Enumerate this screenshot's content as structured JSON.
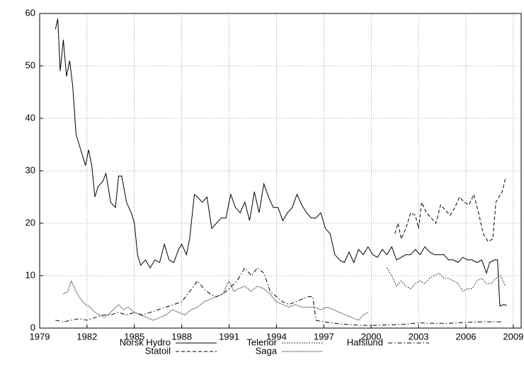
{
  "chart_data": {
    "type": "line",
    "grid": true,
    "xlim": [
      1979,
      2009.5
    ],
    "ylim": [
      0,
      60
    ],
    "xticks": [
      1979,
      1982,
      1985,
      1988,
      1991,
      1994,
      1997,
      2000,
      2003,
      2006,
      2009
    ],
    "yticks": [
      0,
      10,
      20,
      30,
      40,
      50,
      60
    ],
    "series": [
      {
        "name": "Norsk Hydro",
        "color": "#000000",
        "line_style": "solid",
        "x": [
          1980.0,
          1980.15,
          1980.3,
          1980.5,
          1980.7,
          1980.9,
          1981.1,
          1981.3,
          1981.6,
          1981.9,
          1982.1,
          1982.3,
          1982.5,
          1982.7,
          1983.0,
          1983.2,
          1983.5,
          1983.8,
          1984.0,
          1984.2,
          1984.5,
          1984.8,
          1985.0,
          1985.2,
          1985.4,
          1985.7,
          1986.0,
          1986.3,
          1986.6,
          1986.9,
          1987.2,
          1987.5,
          1987.8,
          1988.0,
          1988.3,
          1988.5,
          1988.8,
          1989.0,
          1989.3,
          1989.6,
          1989.9,
          1990.2,
          1990.5,
          1990.8,
          1991.1,
          1991.4,
          1991.7,
          1992.0,
          1992.3,
          1992.6,
          1992.9,
          1993.2,
          1993.5,
          1993.8,
          1994.1,
          1994.4,
          1994.7,
          1995.0,
          1995.3,
          1995.6,
          1995.9,
          1996.2,
          1996.5,
          1996.8,
          1997.1,
          1997.4,
          1997.7,
          1998.0,
          1998.3,
          1998.6,
          1998.9,
          1999.2,
          1999.5,
          1999.8,
          2000.1,
          2000.4,
          2000.7,
          2001.0,
          2001.3,
          2001.6,
          2001.9,
          2002.2,
          2002.5,
          2002.8,
          2003.1,
          2003.4,
          2003.7,
          2004.0,
          2004.3,
          2004.6,
          2004.9,
          2005.2,
          2005.5,
          2005.8,
          2006.1,
          2006.4,
          2006.7,
          2007.0,
          2007.3,
          2007.5,
          2007.8,
          2008.0,
          2008.15,
          2008.4,
          2008.6
        ],
        "values": [
          57,
          59,
          49,
          55,
          48,
          51,
          46,
          37,
          34,
          31,
          34,
          31,
          25,
          27,
          28,
          29.5,
          24,
          23,
          29,
          29,
          24,
          22,
          20,
          14,
          12,
          13,
          11.5,
          13,
          12.5,
          16,
          13,
          12.5,
          15,
          16,
          14,
          17,
          25.5,
          25,
          24,
          25,
          19,
          20,
          21,
          21,
          25.5,
          23,
          22,
          24,
          20.5,
          26,
          22,
          27.5,
          25,
          23,
          23,
          20.5,
          22,
          23,
          25.5,
          23.5,
          22,
          21,
          21,
          22,
          19,
          18,
          14,
          13,
          12.5,
          14.5,
          12.5,
          15,
          14,
          15.5,
          14,
          13.5,
          15,
          14,
          15.5,
          13,
          13.5,
          14,
          14,
          15,
          14,
          15.5,
          14.5,
          14,
          14,
          14,
          13,
          13,
          12.5,
          13.5,
          13,
          13,
          12.5,
          13,
          10.5,
          12.5,
          13,
          13,
          4.2,
          4.5,
          4.3
        ]
      },
      {
        "name": "Statoil",
        "color": "#000000",
        "line_style": "dashed",
        "x": [
          2001.5,
          2001.7,
          2001.9,
          2002.2,
          2002.5,
          2002.8,
          2003.0,
          2003.2,
          2003.5,
          2003.8,
          2004.1,
          2004.4,
          2004.7,
          2005.0,
          2005.3,
          2005.6,
          2005.9,
          2006.2,
          2006.5,
          2006.8,
          2007.1,
          2007.4,
          2007.7,
          2007.9,
          2008.1,
          2008.3,
          2008.5
        ],
        "values": [
          18,
          20,
          17,
          19,
          22,
          21.5,
          19,
          24,
          22,
          21,
          20,
          23.5,
          22.5,
          21.5,
          23,
          25,
          24,
          23.5,
          25.5,
          22,
          18,
          16.5,
          17,
          24,
          25,
          26,
          28.5
        ]
      },
      {
        "name": "Telenor",
        "color": "#000000",
        "line_style": "dotted",
        "x": [
          2001.0,
          2001.3,
          2001.6,
          2001.9,
          2002.2,
          2002.5,
          2002.8,
          2003.1,
          2003.4,
          2003.7,
          2004.0,
          2004.3,
          2004.6,
          2004.9,
          2005.2,
          2005.5,
          2005.8,
          2006.1,
          2006.4,
          2006.7,
          2007.0,
          2007.3,
          2007.6,
          2007.9,
          2008.2,
          2008.5
        ],
        "values": [
          11.5,
          10,
          8,
          9,
          8,
          7.5,
          8.5,
          9,
          8.5,
          9.5,
          10,
          10.5,
          9.5,
          9.5,
          9,
          8.5,
          7,
          7.5,
          7.5,
          9,
          9.5,
          8.5,
          8.5,
          9.5,
          10,
          8
        ]
      },
      {
        "name": "Saga",
        "color": "#000000",
        "line_style": "fine-dotted",
        "x": [
          1980.5,
          1980.8,
          1981.0,
          1981.3,
          1981.6,
          1981.9,
          1982.2,
          1982.5,
          1982.8,
          1983.1,
          1983.5,
          1984.0,
          1984.3,
          1984.6,
          1985.0,
          1985.4,
          1985.8,
          1986.2,
          1986.6,
          1987.0,
          1987.4,
          1987.8,
          1988.2,
          1988.6,
          1989.0,
          1989.4,
          1989.8,
          1990.2,
          1990.6,
          1991.0,
          1991.3,
          1991.6,
          1992.0,
          1992.4,
          1992.8,
          1993.2,
          1993.6,
          1994.0,
          1994.4,
          1994.8,
          1995.2,
          1995.6,
          1996.0,
          1996.4,
          1996.8,
          1997.2,
          1997.6,
          1998.0,
          1998.4,
          1998.8,
          1999.2,
          1999.5,
          1999.8
        ],
        "values": [
          6.5,
          7,
          9,
          7,
          5.5,
          4.5,
          4,
          3,
          2.5,
          2,
          3,
          4.5,
          3.5,
          4,
          3,
          2.5,
          2,
          1.5,
          2,
          2.5,
          3.5,
          3,
          2.5,
          3.5,
          4,
          5,
          5.5,
          6,
          6.5,
          9,
          7,
          7.5,
          8,
          7,
          8,
          7.5,
          6.5,
          5,
          4.5,
          4,
          4.5,
          4,
          4,
          4,
          3.5,
          4,
          3.5,
          3,
          2.5,
          2,
          1.5,
          2.5,
          3
        ]
      },
      {
        "name": "Hafslund",
        "color": "#000000",
        "line_style": "dashdot",
        "x": [
          1980.0,
          1980.5,
          1981.0,
          1981.5,
          1982.0,
          1982.5,
          1983.0,
          1983.5,
          1984.0,
          1984.5,
          1985.0,
          1985.5,
          1986.0,
          1986.5,
          1987.0,
          1987.5,
          1988.0,
          1988.5,
          1989.0,
          1989.4,
          1989.8,
          1990.2,
          1990.6,
          1991.0,
          1991.5,
          1992.0,
          1992.4,
          1992.8,
          1993.2,
          1993.6,
          1994.0,
          1994.4,
          1994.8,
          1995.2,
          1995.6,
          1996.0,
          1996.3,
          1996.5,
          1997.0,
          1998.0,
          1999.0,
          2000.0,
          2001.0,
          2002.0,
          2003.0,
          2004.0,
          2005.0,
          2006.0,
          2007.0,
          2008.3
        ],
        "values": [
          1.5,
          1.2,
          1.5,
          1.8,
          1.5,
          2,
          2.5,
          2.5,
          3,
          2.5,
          3,
          2.5,
          3,
          3.5,
          4,
          4.5,
          5,
          7,
          9,
          7.5,
          6.5,
          6,
          6.5,
          7.5,
          9,
          11.5,
          10,
          11.5,
          10.5,
          7,
          6,
          5,
          4.5,
          5,
          5.5,
          6,
          6,
          1.5,
          1.2,
          0.8,
          0.6,
          0.5,
          0.6,
          0.7,
          1.0,
          0.9,
          0.9,
          1.1,
          1.2,
          1.2
        ]
      }
    ]
  }
}
